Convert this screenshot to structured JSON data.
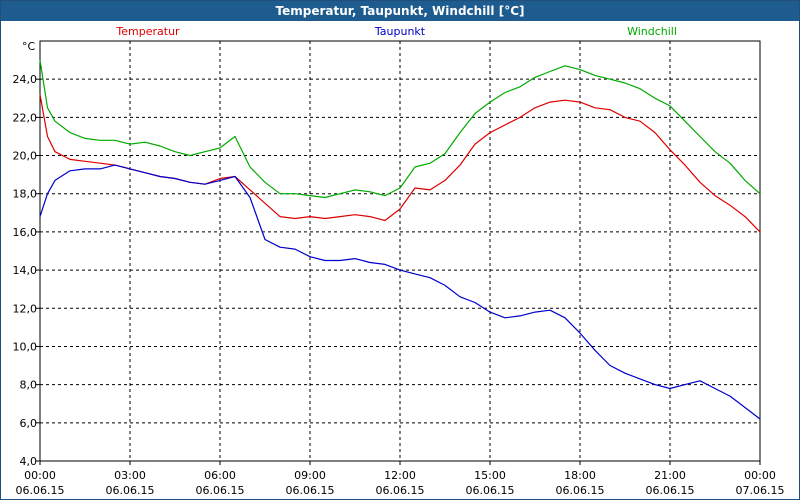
{
  "window": {
    "title": "Temperatur, Taupunkt, Windchill [°C]"
  },
  "chart_data": {
    "type": "line",
    "title": "Temperatur, Taupunkt, Windchill [°C]",
    "ylabel": "°C",
    "xlim": [
      0,
      24
    ],
    "ylim": [
      4,
      26
    ],
    "grid": true,
    "legend_placement": "top",
    "y_ticks": [
      "4,0",
      "6,0",
      "8,0",
      "10,0",
      "12,0",
      "14,0",
      "16,0",
      "18,0",
      "20,0",
      "22,0",
      "24,0"
    ],
    "x_ticks": [
      {
        "time": "00:00",
        "date": "06.06.15"
      },
      {
        "time": "03:00",
        "date": "06.06.15"
      },
      {
        "time": "06:00",
        "date": "06.06.15"
      },
      {
        "time": "09:00",
        "date": "06.06.15"
      },
      {
        "time": "12:00",
        "date": "06.06.15"
      },
      {
        "time": "15:00",
        "date": "06.06.15"
      },
      {
        "time": "18:00",
        "date": "06.06.15"
      },
      {
        "time": "21:00",
        "date": "06.06.15"
      },
      {
        "time": "00:00",
        "date": "07.06.15"
      }
    ],
    "series": [
      {
        "name": "Temperatur",
        "color": "#dd0000",
        "x": [
          0,
          0.25,
          0.5,
          1,
          1.5,
          2,
          2.5,
          3,
          3.5,
          4,
          4.5,
          5,
          5.5,
          6,
          6.5,
          7,
          7.5,
          8,
          8.5,
          9,
          9.5,
          10,
          10.5,
          11,
          11.5,
          12,
          12.5,
          13,
          13.5,
          14,
          14.5,
          15,
          15.5,
          16,
          16.5,
          17,
          17.5,
          18,
          18.5,
          19,
          19.5,
          20,
          20.5,
          21,
          21.5,
          22,
          22.5,
          23,
          23.5,
          24
        ],
        "y": [
          23.2,
          21.0,
          20.2,
          19.8,
          19.7,
          19.6,
          19.5,
          19.3,
          19.1,
          18.9,
          18.8,
          18.6,
          18.5,
          18.8,
          18.9,
          18.2,
          17.5,
          16.8,
          16.7,
          16.8,
          16.7,
          16.8,
          16.9,
          16.8,
          16.6,
          17.2,
          18.3,
          18.2,
          18.7,
          19.5,
          20.6,
          21.2,
          21.6,
          22.0,
          22.5,
          22.8,
          22.9,
          22.8,
          22.5,
          22.4,
          22.0,
          21.8,
          21.2,
          20.3,
          19.5,
          18.6,
          17.9,
          17.4,
          16.8,
          16.0
        ]
      },
      {
        "name": "Taupunkt",
        "color": "#0000cc",
        "x": [
          0,
          0.25,
          0.5,
          1,
          1.5,
          2,
          2.5,
          3,
          3.5,
          4,
          4.5,
          5,
          5.5,
          6,
          6.5,
          7,
          7.5,
          8,
          8.5,
          9,
          9.5,
          10,
          10.5,
          11,
          11.5,
          12,
          12.5,
          13,
          13.5,
          14,
          14.5,
          15,
          15.5,
          16,
          16.5,
          17,
          17.5,
          18,
          18.5,
          19,
          19.5,
          20,
          20.5,
          21,
          21.5,
          22,
          22.5,
          23,
          23.5,
          24
        ],
        "y": [
          16.8,
          18.0,
          18.7,
          19.2,
          19.3,
          19.3,
          19.5,
          19.3,
          19.1,
          18.9,
          18.8,
          18.6,
          18.5,
          18.7,
          18.9,
          17.8,
          15.6,
          15.2,
          15.1,
          14.7,
          14.5,
          14.5,
          14.6,
          14.4,
          14.3,
          14.0,
          13.8,
          13.6,
          13.2,
          12.6,
          12.3,
          11.8,
          11.5,
          11.6,
          11.8,
          11.9,
          11.5,
          10.7,
          9.8,
          9.0,
          8.6,
          8.3,
          8.0,
          7.8,
          8.0,
          8.2,
          7.8,
          7.4,
          6.8,
          6.2
        ]
      },
      {
        "name": "Windchill",
        "color": "#00aa00",
        "x": [
          0,
          0.25,
          0.5,
          1,
          1.5,
          2,
          2.5,
          3,
          3.5,
          4,
          4.5,
          5,
          5.5,
          6,
          6.5,
          7,
          7.5,
          8,
          8.5,
          9,
          9.5,
          10,
          10.5,
          11,
          11.5,
          12,
          12.5,
          13,
          13.5,
          14,
          14.5,
          15,
          15.5,
          16,
          16.5,
          17,
          17.5,
          18,
          18.5,
          19,
          19.5,
          20,
          20.5,
          21,
          21.5,
          22,
          22.5,
          23,
          23.5,
          24
        ],
        "y": [
          25.0,
          22.5,
          21.8,
          21.2,
          20.9,
          20.8,
          20.8,
          20.6,
          20.7,
          20.5,
          20.2,
          20.0,
          20.2,
          20.4,
          21.0,
          19.4,
          18.6,
          18.0,
          18.0,
          17.9,
          17.8,
          18.0,
          18.2,
          18.1,
          17.9,
          18.3,
          19.4,
          19.6,
          20.1,
          21.2,
          22.2,
          22.8,
          23.3,
          23.6,
          24.1,
          24.4,
          24.7,
          24.5,
          24.2,
          24.0,
          23.8,
          23.5,
          23.0,
          22.6,
          21.8,
          21.0,
          20.2,
          19.6,
          18.7,
          18.0
        ]
      }
    ]
  }
}
